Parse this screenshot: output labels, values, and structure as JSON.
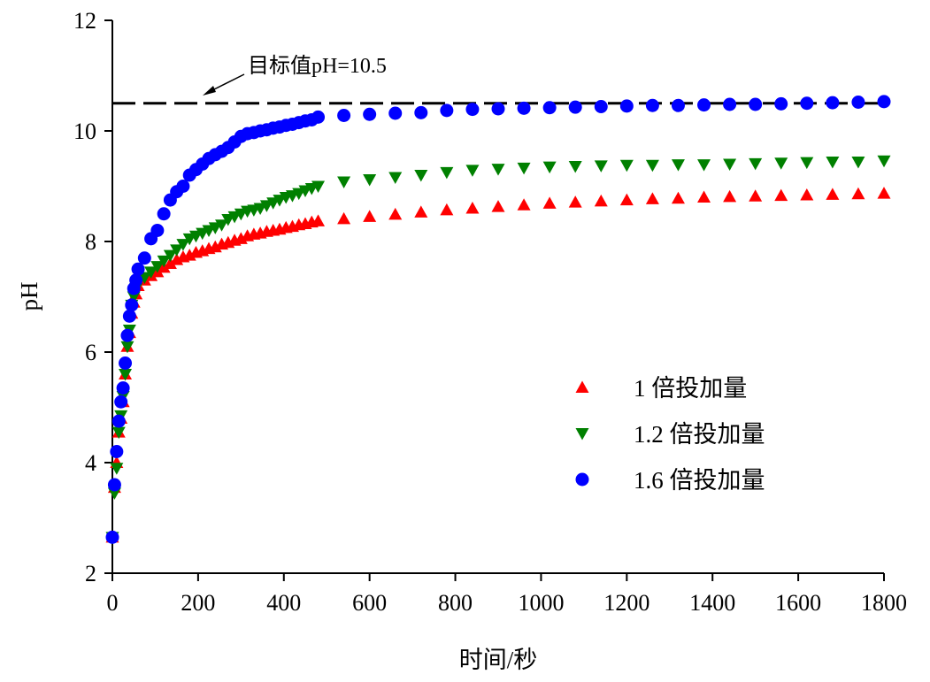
{
  "chart_data": {
    "type": "scatter",
    "title": "",
    "xlabel": "时间/秒",
    "ylabel": "pH",
    "xlim": [
      0,
      1800
    ],
    "ylim": [
      2,
      12
    ],
    "xticks": [
      0,
      200,
      400,
      600,
      800,
      1000,
      1200,
      1400,
      1600,
      1800
    ],
    "yticks": [
      2,
      4,
      6,
      8,
      10,
      12
    ],
    "grid": false,
    "legend_position": "center-right",
    "reference_line": {
      "y": 10.5,
      "style": "dashed",
      "color": "#000000",
      "label": "目标值pH=10.5"
    },
    "x": [
      0,
      5,
      10,
      15,
      20,
      25,
      30,
      35,
      40,
      45,
      50,
      55,
      60,
      75,
      90,
      105,
      120,
      135,
      150,
      165,
      180,
      195,
      210,
      225,
      240,
      255,
      270,
      285,
      300,
      315,
      330,
      345,
      360,
      375,
      390,
      405,
      420,
      435,
      450,
      465,
      480,
      540,
      600,
      660,
      720,
      780,
      840,
      900,
      960,
      1020,
      1080,
      1140,
      1200,
      1260,
      1320,
      1380,
      1440,
      1500,
      1560,
      1620,
      1680,
      1740,
      1800
    ],
    "series": [
      {
        "name": "1 倍投加量",
        "marker": "triangle-up",
        "color": "#ff0000",
        "values": [
          2.65,
          3.55,
          4.0,
          4.55,
          4.8,
          5.1,
          5.6,
          6.1,
          6.35,
          6.7,
          6.9,
          7.05,
          7.2,
          7.3,
          7.38,
          7.45,
          7.53,
          7.6,
          7.67,
          7.72,
          7.75,
          7.8,
          7.83,
          7.87,
          7.9,
          7.95,
          7.98,
          8.02,
          8.05,
          8.1,
          8.13,
          8.15,
          8.18,
          8.2,
          8.22,
          8.25,
          8.27,
          8.3,
          8.32,
          8.35,
          8.37,
          8.41,
          8.45,
          8.49,
          8.53,
          8.57,
          8.6,
          8.63,
          8.66,
          8.69,
          8.71,
          8.73,
          8.75,
          8.77,
          8.78,
          8.8,
          8.81,
          8.82,
          8.83,
          8.84,
          8.85,
          8.86,
          8.87
        ]
      },
      {
        "name": "1.2 倍投加量",
        "marker": "triangle-down",
        "color": "#008000",
        "values": [
          2.65,
          3.45,
          3.9,
          4.55,
          4.85,
          5.2,
          5.6,
          6.1,
          6.4,
          6.85,
          7.0,
          7.15,
          7.25,
          7.35,
          7.45,
          7.55,
          7.65,
          7.75,
          7.85,
          7.95,
          8.05,
          8.1,
          8.15,
          8.2,
          8.25,
          8.3,
          8.4,
          8.45,
          8.5,
          8.55,
          8.57,
          8.6,
          8.65,
          8.7,
          8.75,
          8.8,
          8.83,
          8.87,
          8.92,
          8.96,
          9.0,
          9.08,
          9.12,
          9.16,
          9.2,
          9.25,
          9.29,
          9.31,
          9.33,
          9.35,
          9.36,
          9.37,
          9.38,
          9.38,
          9.39,
          9.39,
          9.4,
          9.41,
          9.42,
          9.43,
          9.44,
          9.44,
          9.46
        ]
      },
      {
        "name": "1.6 倍投加量",
        "marker": "circle",
        "color": "#0000ff",
        "values": [
          2.65,
          3.6,
          4.2,
          4.75,
          5.1,
          5.35,
          5.8,
          6.3,
          6.65,
          6.85,
          7.15,
          7.3,
          7.5,
          7.7,
          8.05,
          8.2,
          8.5,
          8.75,
          8.9,
          9.0,
          9.2,
          9.3,
          9.4,
          9.5,
          9.57,
          9.63,
          9.7,
          9.8,
          9.9,
          9.95,
          9.97,
          10.0,
          10.02,
          10.05,
          10.07,
          10.1,
          10.12,
          10.15,
          10.18,
          10.2,
          10.25,
          10.28,
          10.3,
          10.32,
          10.33,
          10.37,
          10.39,
          10.4,
          10.41,
          10.42,
          10.43,
          10.44,
          10.45,
          10.46,
          10.46,
          10.47,
          10.48,
          10.48,
          10.49,
          10.5,
          10.51,
          10.52,
          10.53
        ]
      }
    ]
  }
}
